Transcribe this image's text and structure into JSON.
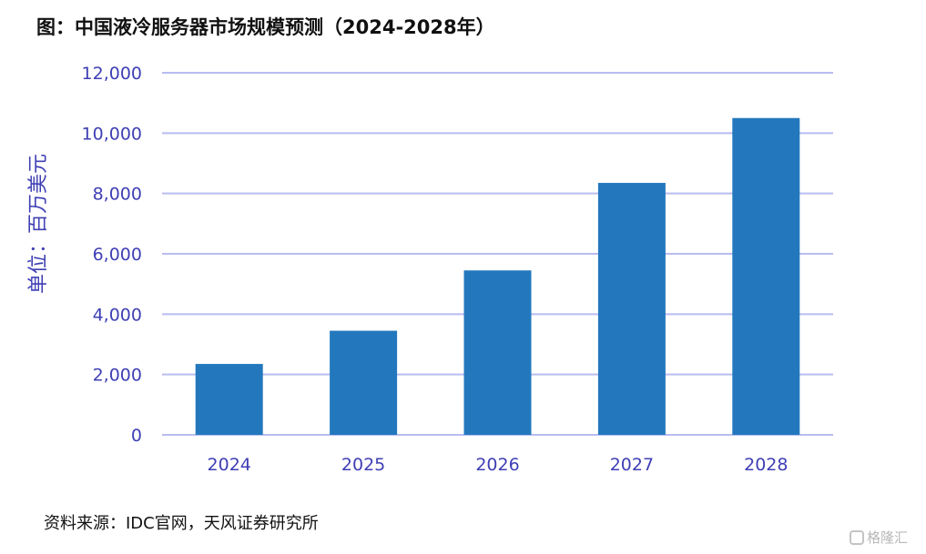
{
  "title": "图：中国液冷服务器市场规模预测（2024-2028年）",
  "source": "资料来源：IDC官网，天风证券研究所",
  "watermark": "格隆汇",
  "colors": {
    "bar": "#2378bd",
    "grid": "#b8bcf0",
    "axis_text": "#3f3fb5"
  },
  "chart_data": {
    "type": "bar",
    "categories": [
      "2024",
      "2025",
      "2026",
      "2027",
      "2028"
    ],
    "values": [
      2350,
      3450,
      5450,
      8350,
      10500
    ],
    "title": "图：中国液冷服务器市场规模预测（2024-2028年）",
    "xlabel": "",
    "ylabel": "单位：百万美元",
    "ylim": [
      0,
      12000
    ],
    "yticks": [
      "0",
      "2,000",
      "4,000",
      "6,000",
      "8,000",
      "10,000",
      "12,000"
    ],
    "grid": true
  }
}
